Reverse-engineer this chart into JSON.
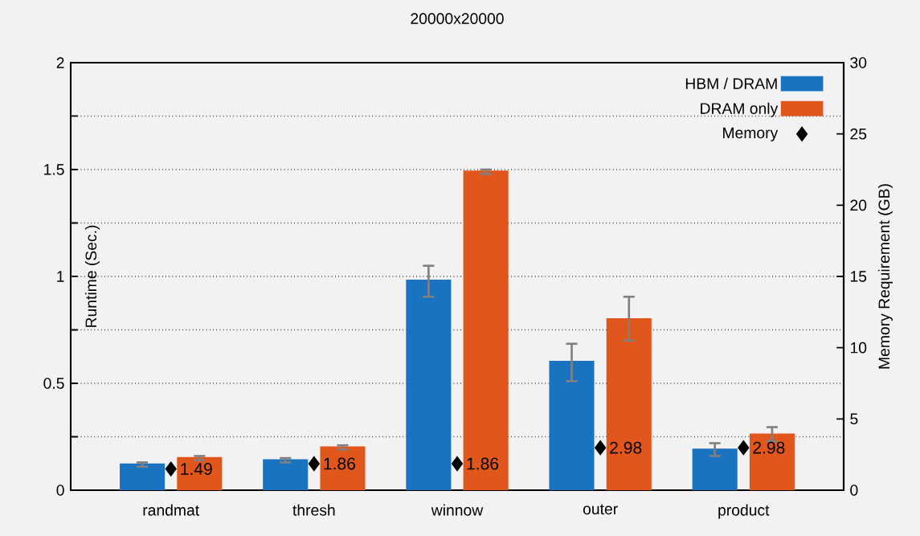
{
  "chart_data": {
    "type": "bar",
    "title": "20000x20000",
    "ylabel": "Runtime (Sec.)",
    "y2label": "Memory Requirement (GB)",
    "categories": [
      "randmat",
      "thresh",
      "winnow",
      "outer",
      "product"
    ],
    "series": [
      {
        "name": "HBM / DRAM",
        "color": "#1a73c0",
        "values": [
          0.12,
          0.14,
          0.98,
          0.6,
          0.19
        ],
        "errors": [
          0.01,
          0.01,
          [
            0.905,
            1.05
          ],
          [
            0.51,
            0.685
          ],
          [
            0.16,
            0.22
          ]
        ]
      },
      {
        "name": "DRAM only",
        "color": "#e0561b",
        "values": [
          0.15,
          0.2,
          1.49,
          0.8,
          0.26
        ],
        "errors": [
          0.01,
          0.01,
          0.01,
          [
            0.7,
            0.905
          ],
          [
            0.23,
            0.295
          ]
        ]
      },
      {
        "name": "Memory",
        "type": "scatter",
        "axis": "y2",
        "color": "#000000",
        "marker": "diamond",
        "data_labels": true,
        "values": [
          1.49,
          1.86,
          1.86,
          2.98,
          2.98
        ]
      }
    ],
    "ylim": [
      0,
      2
    ],
    "yticks": [
      0,
      {
        "value": 0.25,
        "label": null
      },
      0.5,
      {
        "value": 0.75,
        "label": null
      },
      1,
      {
        "value": 1.25,
        "label": null
      },
      1.5,
      {
        "value": 1.75,
        "label": null
      },
      2
    ],
    "y2lim": [
      0,
      30
    ],
    "y2ticks": [
      0,
      5,
      10,
      15,
      20,
      25,
      30
    ],
    "grid": "y",
    "legend": "top right"
  }
}
